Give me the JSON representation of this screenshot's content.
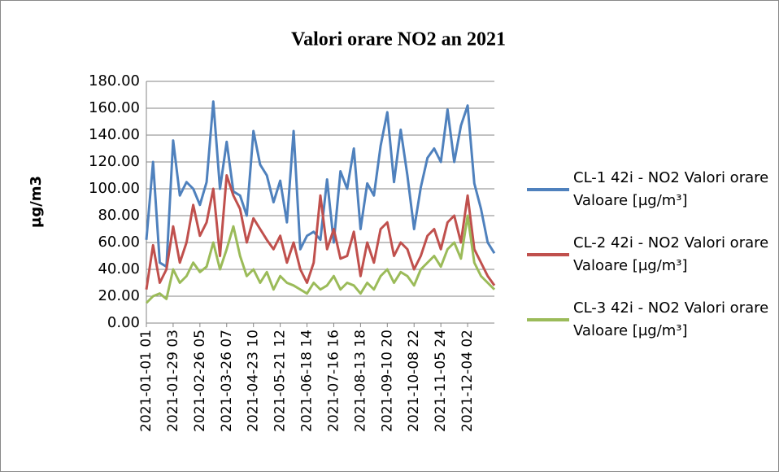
{
  "chart_data": {
    "type": "line",
    "title": "Valori orare NO2 an 2021",
    "y_label": "µg/m3",
    "categories": [
      "2021-01-01 01",
      null,
      null,
      null,
      "2021-01-29 03",
      null,
      null,
      null,
      "2021-02-26 05",
      null,
      null,
      null,
      "2021-03-26 07",
      null,
      null,
      null,
      "2021-04-23 10",
      null,
      null,
      null,
      "2021-05-21 12",
      null,
      null,
      null,
      "2021-06-18 14",
      null,
      null,
      null,
      "2021-07-16 16",
      null,
      null,
      null,
      "2021-08-13 18",
      null,
      null,
      null,
      "2021-09-10 20",
      null,
      null,
      null,
      "2021-10-08 22",
      null,
      null,
      null,
      "2021-11-05 24",
      null,
      null,
      null,
      "2021-12-04 02",
      null,
      null,
      null,
      null
    ],
    "series": [
      {
        "name": "CL-1 42i - NO2 Valori orare Valoare [µg/m³]",
        "color": "#4f81bd",
        "values": [
          62,
          120,
          45,
          42,
          136,
          95,
          105,
          100,
          88,
          105,
          165,
          100,
          135,
          98,
          95,
          80,
          143,
          118,
          110,
          90,
          106,
          75,
          143,
          55,
          65,
          68,
          62,
          107,
          60,
          113,
          100,
          130,
          70,
          104,
          95,
          132,
          157,
          105,
          144,
          110,
          70,
          101,
          123,
          130,
          120,
          159,
          120,
          147,
          162,
          104,
          85,
          60,
          52
        ]
      },
      {
        "name": "CL-2 42i - NO2 Valori orare Valoare [µg/m³]",
        "color": "#c0504d",
        "values": [
          25,
          58,
          30,
          40,
          72,
          45,
          60,
          88,
          65,
          75,
          100,
          50,
          110,
          95,
          85,
          60,
          78,
          70,
          62,
          55,
          65,
          45,
          60,
          40,
          30,
          45,
          95,
          55,
          70,
          48,
          50,
          68,
          35,
          60,
          45,
          70,
          75,
          50,
          60,
          55,
          40,
          50,
          65,
          70,
          55,
          75,
          80,
          60,
          95,
          55,
          45,
          35,
          28
        ]
      },
      {
        "name": "CL-3 42i - NO2 Valori orare Valoare [µg/m³]",
        "color": "#9bbb59",
        "values": [
          15,
          20,
          22,
          18,
          40,
          30,
          35,
          45,
          38,
          42,
          60,
          40,
          55,
          72,
          50,
          35,
          40,
          30,
          38,
          25,
          35,
          30,
          28,
          25,
          22,
          30,
          25,
          28,
          35,
          25,
          30,
          28,
          22,
          30,
          25,
          35,
          40,
          30,
          38,
          35,
          28,
          40,
          45,
          50,
          42,
          55,
          60,
          48,
          80,
          45,
          35,
          30,
          25
        ]
      }
    ],
    "ylim": [
      0,
      180
    ],
    "yticks": [
      {
        "value": 0,
        "label": "0.00"
      },
      {
        "value": 20,
        "label": "20.00"
      },
      {
        "value": 40,
        "label": "40.00"
      },
      {
        "value": 60,
        "label": "60.00"
      },
      {
        "value": 80,
        "label": "80.00"
      },
      {
        "value": 100,
        "label": "100.00"
      },
      {
        "value": 120,
        "label": "120.00"
      },
      {
        "value": 140,
        "label": "140.00"
      },
      {
        "value": 160,
        "label": "160.00"
      },
      {
        "value": 180,
        "label": "180.00"
      }
    ],
    "grid": true,
    "legend": "right"
  }
}
